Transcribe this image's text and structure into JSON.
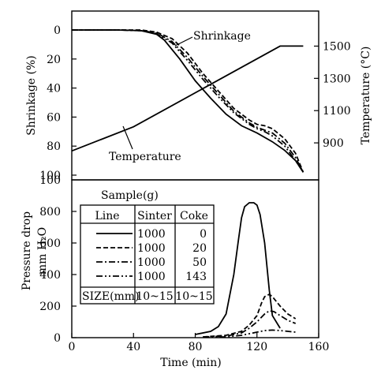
{
  "chart_data": [
    {
      "type": "line",
      "panel": "top",
      "xlabel": "",
      "ylabel_left": "Shrinkage (%)",
      "ylabel_right": "Temperature (°C)",
      "xlim": [
        0,
        160
      ],
      "ylim_left": [
        0,
        100
      ],
      "ylim_right": [
        700,
        1600
      ],
      "y_ticks_left": [
        0,
        20,
        40,
        60,
        80,
        100
      ],
      "y_ticks_right": [
        900,
        1100,
        1300,
        1500
      ],
      "annotations": [
        {
          "text": "Shrinkage",
          "x": 88,
          "y": 5
        },
        {
          "text": "Temperature",
          "x": 35,
          "y": 84
        }
      ],
      "series": [
        {
          "name": "",
          "axis": "right",
          "style": "solid",
          "x": [
            0,
            40,
            135,
            142,
            150
          ],
          "y": [
            850,
            1000,
            1500,
            1500,
            1500
          ]
        },
        {
          "name": "",
          "axis": "left",
          "style": "solid",
          "x": [
            0,
            30,
            45,
            55,
            60,
            70,
            80,
            90,
            100,
            110,
            120,
            130,
            138,
            145,
            150
          ],
          "y": [
            0,
            0,
            0.5,
            3,
            7,
            20,
            35,
            47,
            58,
            66,
            71,
            77,
            83,
            90,
            98
          ]
        },
        {
          "name": "",
          "axis": "left",
          "style": "dashed",
          "x": [
            0,
            30,
            45,
            55,
            65,
            75,
            85,
            95,
            105,
            115,
            120,
            125,
            130,
            138,
            145,
            150
          ],
          "y": [
            0,
            0,
            0,
            1.5,
            6,
            16,
            30,
            42,
            54,
            62,
            65,
            66,
            68,
            75,
            85,
            98
          ]
        },
        {
          "name": "",
          "axis": "left",
          "style": "dash-dot",
          "x": [
            0,
            30,
            45,
            55,
            65,
            75,
            85,
            95,
            105,
            115,
            120,
            125,
            130,
            138,
            145,
            150
          ],
          "y": [
            0,
            0,
            0.5,
            2,
            8,
            19,
            32,
            44,
            56,
            64,
            67,
            69,
            71,
            78,
            88,
            98
          ]
        },
        {
          "name": "",
          "axis": "left",
          "style": "dash-dot-dot",
          "x": [
            0,
            30,
            45,
            55,
            65,
            75,
            85,
            95,
            105,
            115,
            120,
            125,
            130,
            138,
            145,
            150
          ],
          "y": [
            0,
            0,
            0.5,
            2.5,
            9,
            21,
            34,
            46,
            57,
            65,
            68,
            70,
            73,
            80,
            90,
            98
          ]
        }
      ]
    },
    {
      "type": "line",
      "panel": "bottom",
      "xlabel": "Time (min)",
      "ylabel": "Pressure drop",
      "ylabel_unit": "mm H₂O",
      "xlim": [
        0,
        160
      ],
      "ylim": [
        0,
        1000
      ],
      "x_ticks": [
        0,
        40,
        80,
        120,
        160
      ],
      "y_ticks": [
        0,
        200,
        400,
        600,
        800
      ],
      "series": [
        {
          "name": "",
          "style": "solid",
          "x": [
            80,
            90,
            95,
            100,
            105,
            108,
            110,
            112,
            115,
            118,
            120,
            122,
            125,
            128,
            130,
            135
          ],
          "y": [
            20,
            40,
            70,
            150,
            400,
            620,
            760,
            830,
            855,
            855,
            840,
            780,
            600,
            300,
            140,
            60
          ]
        },
        {
          "name": "",
          "style": "dashed",
          "x": [
            85,
            100,
            110,
            115,
            120,
            123,
            125,
            128,
            130,
            135,
            140,
            145
          ],
          "y": [
            5,
            15,
            40,
            80,
            140,
            220,
            260,
            275,
            260,
            200,
            150,
            120
          ]
        },
        {
          "name": "",
          "style": "dash-dot",
          "x": [
            85,
            100,
            110,
            115,
            120,
            125,
            128,
            131,
            135,
            140,
            145
          ],
          "y": [
            5,
            10,
            30,
            60,
            100,
            150,
            170,
            165,
            140,
            110,
            90
          ]
        },
        {
          "name": "",
          "style": "dash-dot-dot",
          "x": [
            85,
            100,
            110,
            120,
            125,
            130,
            135,
            140,
            145
          ],
          "y": [
            2,
            5,
            15,
            35,
            45,
            48,
            45,
            40,
            35
          ]
        }
      ]
    }
  ],
  "legend_table": {
    "title": "Sample(g)",
    "headers": [
      "Line",
      "Sinter",
      "Coke"
    ],
    "rows": [
      {
        "style": "solid",
        "sinter": "1000",
        "coke": "0"
      },
      {
        "style": "dashed",
        "sinter": "1000",
        "coke": "20"
      },
      {
        "style": "dash-dot",
        "sinter": "1000",
        "coke": "50"
      },
      {
        "style": "dash-dot-dot",
        "sinter": "1000",
        "coke": "143"
      }
    ],
    "size_label": "SIZE(mm)",
    "size_sinter": "10~15",
    "size_coke": "10~15"
  }
}
